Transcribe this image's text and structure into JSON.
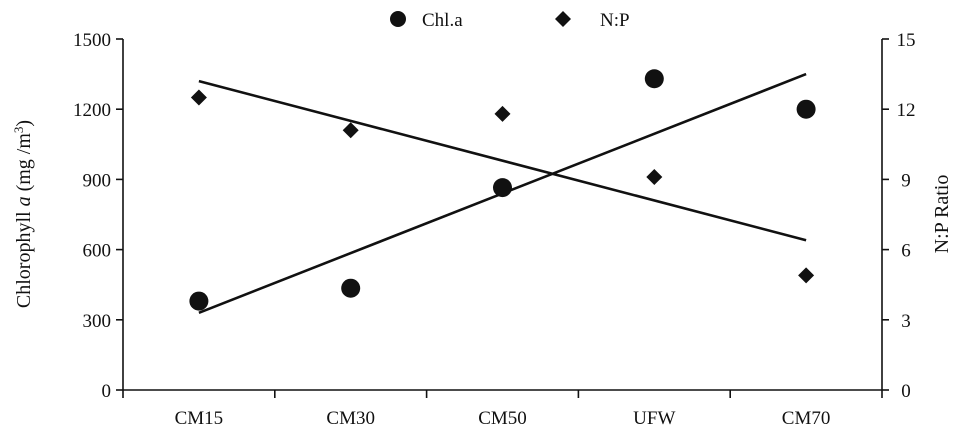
{
  "chart_data": {
    "type": "scatter",
    "categories": [
      "CM15",
      "CM30",
      "CM50",
      "UFW",
      "CM70"
    ],
    "series": [
      {
        "name": "Chl.a",
        "axis": "left",
        "marker": "circle",
        "values": [
          380,
          435,
          865,
          1330,
          1200
        ],
        "trendline": [
          330,
          585,
          840,
          1095,
          1350
        ]
      },
      {
        "name": "N:P",
        "axis": "right",
        "marker": "diamond",
        "values": [
          12.5,
          11.1,
          11.8,
          9.1,
          4.9
        ],
        "trendline": [
          13.2,
          11.5,
          9.8,
          8.1,
          6.4
        ]
      }
    ],
    "y_left": {
      "label_prefix": "Chlorophyll ",
      "label_italic": "a",
      "label_unit": " (mg /m",
      "label_sup": "3",
      "label_close": ")",
      "ylim": [
        0,
        1500
      ],
      "ticks": [
        "0",
        "300",
        "600",
        "900",
        "1200",
        "1500"
      ]
    },
    "y_right": {
      "label": "N:P Ratio",
      "ylim": [
        0,
        15
      ],
      "ticks": [
        "0",
        "3",
        "6",
        "9",
        "12",
        "15"
      ]
    },
    "grid": false,
    "legend_position": "top-center",
    "colors": {
      "marker": "#111111",
      "line": "#111111"
    }
  }
}
